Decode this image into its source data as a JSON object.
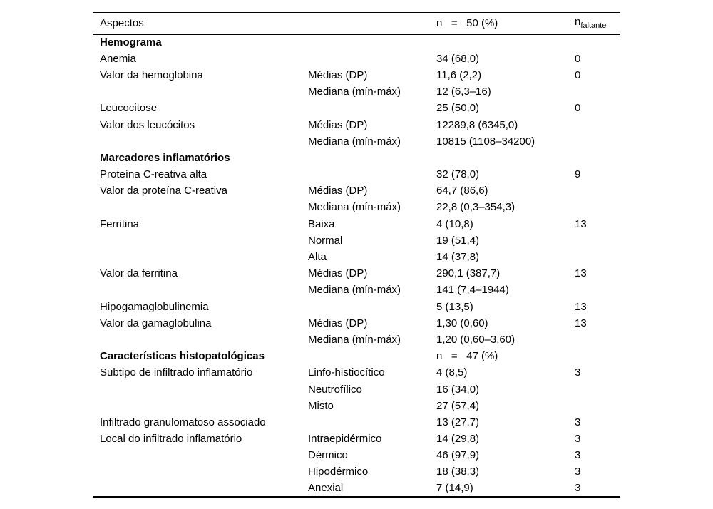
{
  "page": {
    "background": "#ffffff",
    "text_color": "#000000"
  },
  "table": {
    "header": {
      "aspect": "Aspectos",
      "category": "",
      "value": "n   =   50 (%)",
      "missing_base": "n",
      "missing_sub": "faltante"
    },
    "rows": [
      {
        "style": "section",
        "aspect": "Hemograma",
        "category": "",
        "value": "",
        "missing": ""
      },
      {
        "style": "data",
        "aspect": "Anemia",
        "category": "",
        "value": "34 (68,0)",
        "missing": "0"
      },
      {
        "style": "data",
        "aspect": "Valor da hemoglobina",
        "category": "Médias (DP)",
        "value": "11,6 (2,2)",
        "missing": "0"
      },
      {
        "style": "data",
        "aspect": "",
        "category": "Mediana (mín-máx)",
        "value": "12 (6,3–16)",
        "missing": ""
      },
      {
        "style": "data",
        "aspect": "Leucocitose",
        "category": "",
        "value": "25 (50,0)",
        "missing": "0"
      },
      {
        "style": "data",
        "aspect": "Valor dos leucócitos",
        "category": "Médias (DP)",
        "value": "12289,8 (6345,0)",
        "missing": ""
      },
      {
        "style": "data",
        "aspect": "",
        "category": "Mediana (mín-máx)",
        "value": "10815 (1108–34200)",
        "missing": ""
      },
      {
        "style": "section",
        "aspect": "Marcadores inflamatórios",
        "category": "",
        "value": "",
        "missing": ""
      },
      {
        "style": "data",
        "aspect": "Proteína C-reativa alta",
        "category": "",
        "value": "32 (78,0)",
        "missing": "9"
      },
      {
        "style": "data",
        "aspect": "Valor da proteína C-reativa",
        "category": "Médias (DP)",
        "value": "64,7 (86,6)",
        "missing": ""
      },
      {
        "style": "data",
        "aspect": "",
        "category": "Mediana (mín-máx)",
        "value": "22,8 (0,3–354,3)",
        "missing": ""
      },
      {
        "style": "data",
        "aspect": "Ferritina",
        "category": "Baixa",
        "value": "4 (10,8)",
        "missing": "13"
      },
      {
        "style": "data",
        "aspect": "",
        "category": "Normal",
        "value": "19 (51,4)",
        "missing": ""
      },
      {
        "style": "data",
        "aspect": "",
        "category": "Alta",
        "value": "14 (37,8)",
        "missing": ""
      },
      {
        "style": "data",
        "aspect": "Valor da ferritina",
        "category": "Médias (DP)",
        "value": "290,1 (387,7)",
        "missing": "13"
      },
      {
        "style": "data",
        "aspect": "",
        "category": "Mediana (mín-máx)",
        "value": "141 (7,4–1944)",
        "missing": ""
      },
      {
        "style": "data",
        "aspect": "Hipogamaglobulinemia",
        "category": "",
        "value": "5 (13,5)",
        "missing": "13"
      },
      {
        "style": "data",
        "aspect": "Valor da gamaglobulina",
        "category": "Médias (DP)",
        "value": "1,30 (0,60)",
        "missing": "13"
      },
      {
        "style": "data",
        "aspect": "",
        "category": "Mediana (mín-máx)",
        "value": "1,20 (0,60–3,60)",
        "missing": ""
      },
      {
        "style": "section",
        "aspect": "Características histopatológicas",
        "category": "",
        "value": "n   =   47 (%)",
        "missing": ""
      },
      {
        "style": "data",
        "aspect": "Subtipo de infiltrado inflamatório",
        "category": "Linfo-histiocítico",
        "value": "4 (8,5)",
        "missing": "3"
      },
      {
        "style": "data",
        "aspect": "",
        "category": "Neutrofílico",
        "value": "16 (34,0)",
        "missing": ""
      },
      {
        "style": "data",
        "aspect": "",
        "category": "Misto",
        "value": "27 (57,4)",
        "missing": ""
      },
      {
        "style": "data",
        "aspect": "Infiltrado granulomatoso associado",
        "category": "",
        "value": "13 (27,7)",
        "missing": "3"
      },
      {
        "style": "data",
        "aspect": "Local do infiltrado inflamatório",
        "category": "Intraepidérmico",
        "value": "14 (29,8)",
        "missing": "3"
      },
      {
        "style": "data",
        "aspect": "",
        "category": "Dérmico",
        "value": "46 (97,9)",
        "missing": "3"
      },
      {
        "style": "data",
        "aspect": "",
        "category": "Hipodérmico",
        "value": "18 (38,3)",
        "missing": "3"
      },
      {
        "style": "data",
        "aspect": "",
        "category": "Anexial",
        "value": "7 (14,9)",
        "missing": "3"
      }
    ]
  }
}
